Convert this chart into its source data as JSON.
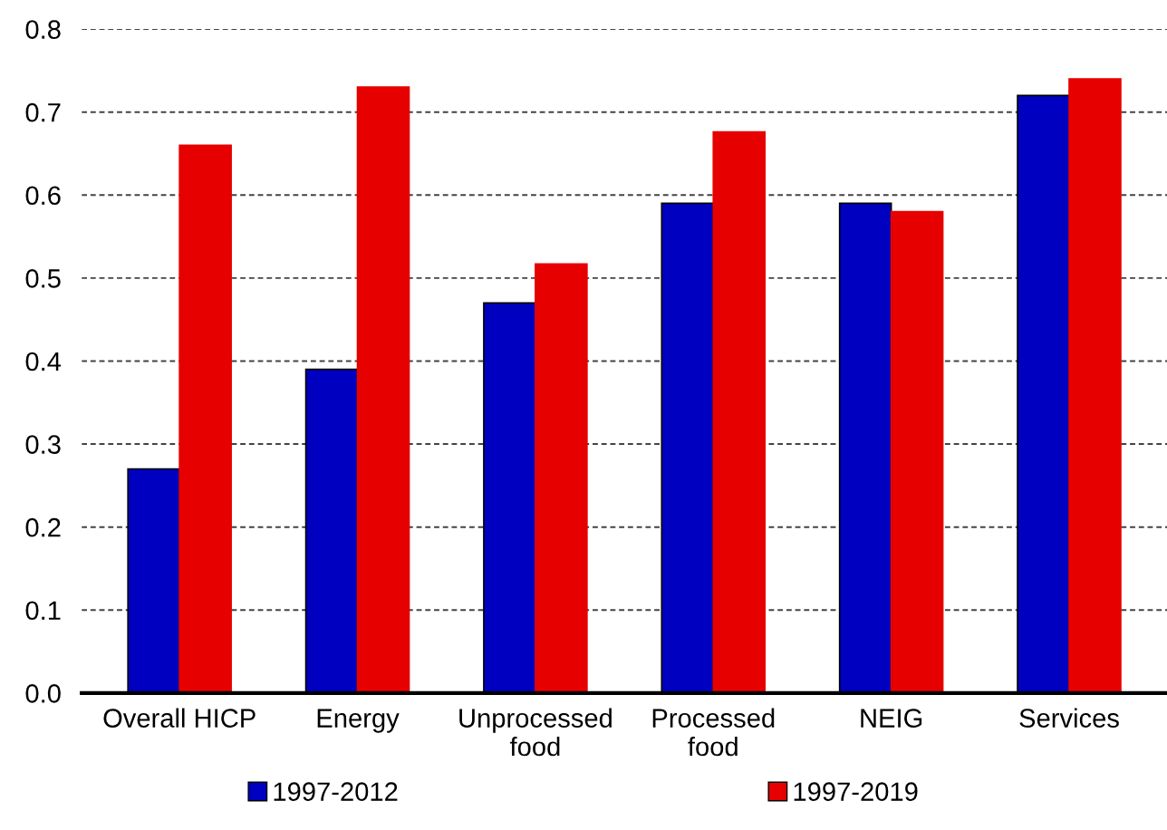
{
  "chart_data": {
    "type": "bar",
    "categories": [
      "Overall HICP",
      "Energy",
      "Unprocessed\nfood",
      "Processed\nfood",
      "NEIG",
      "Services"
    ],
    "series": [
      {
        "name": "1997-2012",
        "color": "#0000c0",
        "values": [
          0.27,
          0.39,
          0.47,
          0.59,
          0.59,
          0.72
        ]
      },
      {
        "name": "1997-2019",
        "color": "#e60000",
        "values": [
          0.66,
          0.73,
          0.517,
          0.676,
          0.58,
          0.74
        ]
      }
    ],
    "ylim": [
      0,
      0.8
    ],
    "yticks": [
      "0.0",
      0.1,
      0.2,
      0.3,
      0.4,
      0.5,
      0.6,
      0.7,
      0.8
    ],
    "grid": "y",
    "legend": "bottom"
  }
}
